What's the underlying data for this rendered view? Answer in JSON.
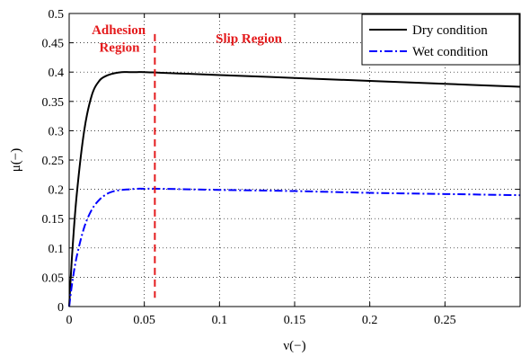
{
  "chart_data": {
    "type": "line",
    "xlabel": "ν(−)",
    "ylabel": "μ(−)",
    "xlim": [
      0,
      0.3
    ],
    "ylim": [
      0,
      0.5
    ],
    "xticks": [
      0,
      0.05,
      0.1,
      0.15,
      0.2,
      0.25
    ],
    "xtick_labels": [
      "0",
      "0.05",
      "0.1",
      "0.15",
      "0.2",
      "0.25"
    ],
    "yticks": [
      0,
      0.05,
      0.1,
      0.15,
      0.2,
      0.25,
      0.3,
      0.35,
      0.4,
      0.45,
      0.5
    ],
    "ytick_labels": [
      "0",
      "0.05",
      "0.1",
      "0.15",
      "0.2",
      "0.25",
      "0.3",
      "0.35",
      "0.4",
      "0.45",
      "0.5"
    ],
    "grid": true,
    "legend_position": "top-right",
    "series": [
      {
        "name": "Dry condition",
        "color": "#000000",
        "style": "solid",
        "x": [
          0,
          0.002,
          0.005,
          0.01,
          0.015,
          0.02,
          0.025,
          0.03,
          0.035,
          0.04,
          0.045,
          0.05,
          0.06,
          0.08,
          0.1,
          0.15,
          0.2,
          0.25,
          0.3
        ],
        "y": [
          0,
          0.09,
          0.19,
          0.3,
          0.36,
          0.385,
          0.394,
          0.398,
          0.4,
          0.4,
          0.4,
          0.4,
          0.399,
          0.397,
          0.395,
          0.39,
          0.385,
          0.38,
          0.375
        ]
      },
      {
        "name": "Wet condition",
        "color": "#0000ff",
        "style": "dashdot",
        "x": [
          0,
          0.002,
          0.005,
          0.01,
          0.015,
          0.02,
          0.025,
          0.03,
          0.035,
          0.04,
          0.045,
          0.05,
          0.06,
          0.08,
          0.1,
          0.15,
          0.2,
          0.25,
          0.3
        ],
        "y": [
          0,
          0.04,
          0.085,
          0.135,
          0.165,
          0.182,
          0.192,
          0.197,
          0.199,
          0.2,
          0.201,
          0.201,
          0.201,
          0.2,
          0.199,
          0.197,
          0.194,
          0.192,
          0.19
        ]
      }
    ],
    "vline": {
      "x": 0.057,
      "color": "#e41a1c",
      "style": "dashed"
    },
    "annotations": [
      {
        "text": "Adhesion",
        "x": 0.015,
        "y": 0.465
      },
      {
        "text": "Region",
        "x": 0.02,
        "y": 0.435
      },
      {
        "text": "Slip Region",
        "x": 0.0975,
        "y": 0.45
      }
    ]
  }
}
